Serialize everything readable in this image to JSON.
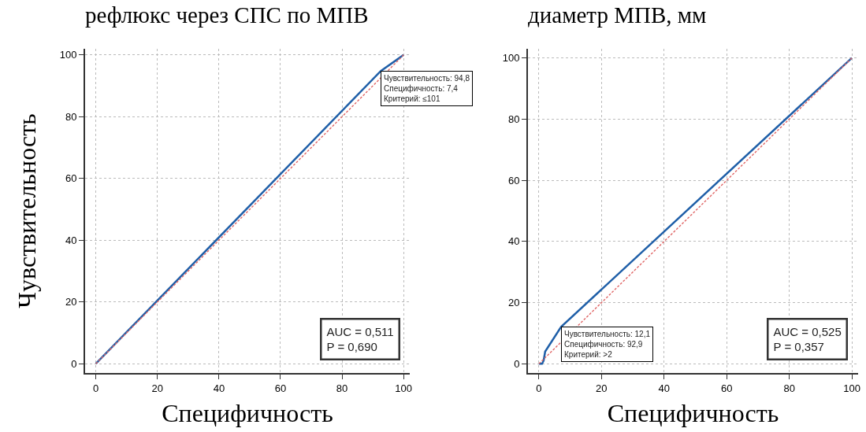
{
  "chart_data": [
    {
      "type": "line",
      "title": "рефлюкс через СПС по МПВ",
      "xlabel": "Специфичность",
      "ylabel": "Чувствительность",
      "xlim": [
        -3.5,
        102
      ],
      "ylim": [
        -3,
        102
      ],
      "xticks": [
        0,
        20,
        40,
        60,
        80,
        100
      ],
      "yticks": [
        0,
        20,
        40,
        60,
        80,
        100
      ],
      "grid": true,
      "marker": "none",
      "series": [
        {
          "color": "#1f5fa8",
          "line_style": "solid",
          "x": [
            0,
            92.6,
            100
          ],
          "values": [
            0,
            94.8,
            100
          ]
        },
        {
          "color": "#e06666",
          "line_style": "dotted",
          "x": [
            0,
            100
          ],
          "values": [
            0,
            100
          ]
        }
      ],
      "annotations": [
        {
          "text": "Чувствительность: 94,8\nСпецифичность: 7,4\nКритерий: ≤101",
          "x": 92.6,
          "y": 94.8
        },
        "AUC = 0,511\nP = 0,690"
      ]
    },
    {
      "type": "line",
      "title": "диаметр МПВ, мм",
      "xlabel": "Специфичность",
      "xlim": [
        -3.5,
        102
      ],
      "ylim": [
        -3,
        103
      ],
      "xticks": [
        0,
        20,
        40,
        60,
        80,
        100
      ],
      "yticks": [
        0,
        20,
        40,
        60,
        80,
        100
      ],
      "grid": true,
      "marker": "none",
      "series": [
        {
          "color": "#1f5fa8",
          "line_style": "solid",
          "x": [
            0,
            1,
            1.5,
            2,
            7.1,
            100
          ],
          "values": [
            0,
            0,
            1,
            4,
            12.1,
            100
          ]
        },
        {
          "color": "#e06666",
          "line_style": "dotted",
          "x": [
            0,
            100
          ],
          "values": [
            0,
            100
          ]
        }
      ],
      "annotations": [
        {
          "text": "Чувствительность: 12,1\nСпецифичность: 92,9\nКритерий: >2",
          "x": 7.1,
          "y": 12.1
        },
        "AUC = 0,525\nP = 0,357"
      ]
    }
  ]
}
